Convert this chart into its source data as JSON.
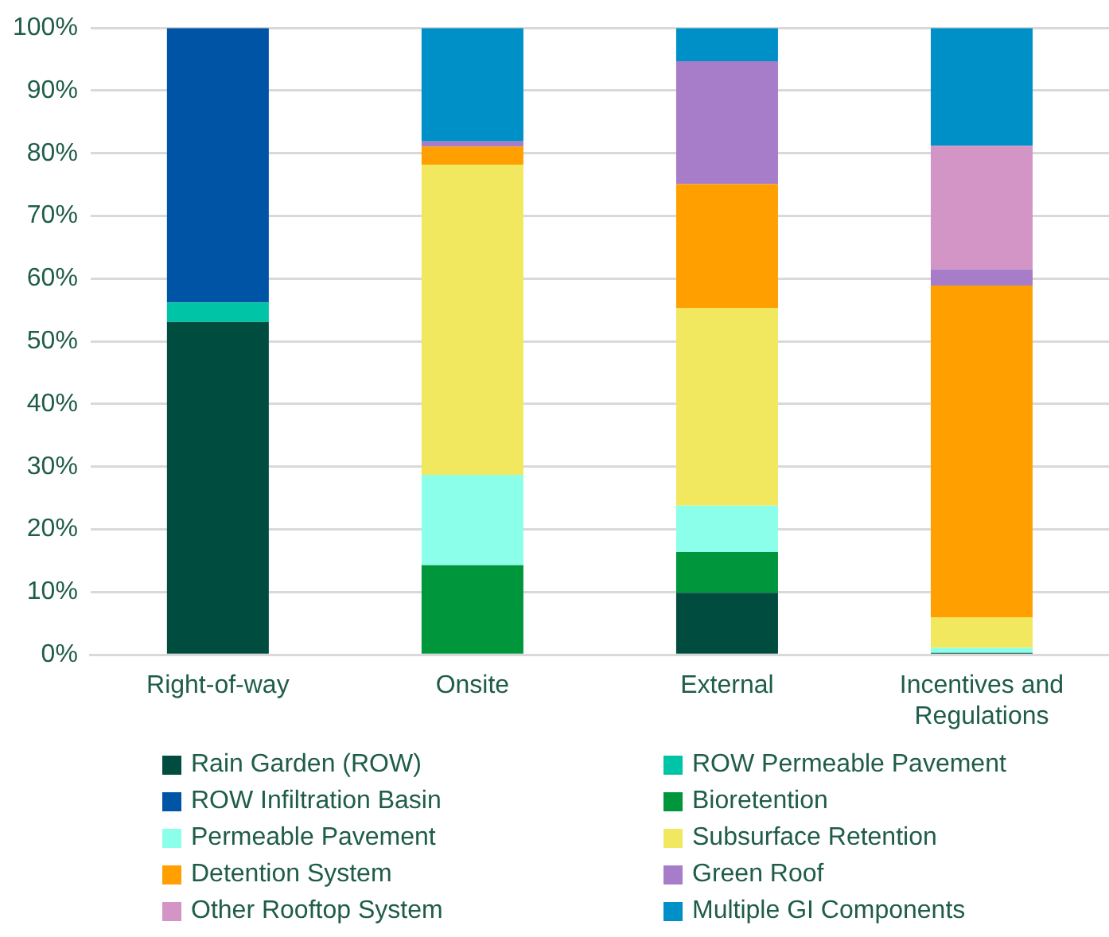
{
  "chart_data": {
    "type": "bar",
    "stacked": true,
    "categories": [
      "Right-of-way",
      "Onsite",
      "External",
      "Incentives and Regulations"
    ],
    "ylim": [
      0,
      100
    ],
    "yticks": [
      {
        "value": 0,
        "label": "0%"
      },
      {
        "value": 10,
        "label": "10%"
      },
      {
        "value": 20,
        "label": "20%"
      },
      {
        "value": 30,
        "label": "30%"
      },
      {
        "value": 40,
        "label": "40%"
      },
      {
        "value": 50,
        "label": "50%"
      },
      {
        "value": 60,
        "label": "60%"
      },
      {
        "value": 70,
        "label": "70%"
      },
      {
        "value": 80,
        "label": "80%"
      },
      {
        "value": 90,
        "label": "90%"
      },
      {
        "value": 100,
        "label": "100%"
      }
    ],
    "grid": "y",
    "legend": "bottom",
    "series": [
      {
        "name": "Rain Garden (ROW)",
        "color": "#004d40",
        "values": [
          53.1,
          0,
          9.9,
          0.3
        ]
      },
      {
        "name": "ROW Permeable Pavement",
        "color": "#00c4a6",
        "values": [
          3.1,
          0,
          0,
          0
        ]
      },
      {
        "name": "ROW Infiltration Basin",
        "color": "#0054a6",
        "values": [
          43.8,
          0,
          0,
          0
        ]
      },
      {
        "name": "Bioretention",
        "color": "#00963c",
        "values": [
          0,
          14.3,
          6.5,
          0
        ]
      },
      {
        "name": "Permeable Pavement",
        "color": "#8cffea",
        "values": [
          0,
          14.4,
          7.4,
          0.8
        ]
      },
      {
        "name": "Subsurface Retention",
        "color": "#f1e860",
        "values": [
          0,
          49.5,
          31.5,
          4.9
        ]
      },
      {
        "name": "Detention System",
        "color": "#ffa000",
        "values": [
          0,
          2.9,
          19.8,
          52.9
        ]
      },
      {
        "name": "Green Roof",
        "color": "#a77cc9",
        "values": [
          0,
          0.8,
          19.6,
          2.6
        ]
      },
      {
        "name": "Other Rooftop System",
        "color": "#d295c6",
        "values": [
          0,
          0,
          0,
          19.7
        ]
      },
      {
        "name": "Multiple GI Components",
        "color": "#0090c8",
        "values": [
          0,
          18.1,
          5.3,
          18.8
        ]
      }
    ]
  }
}
